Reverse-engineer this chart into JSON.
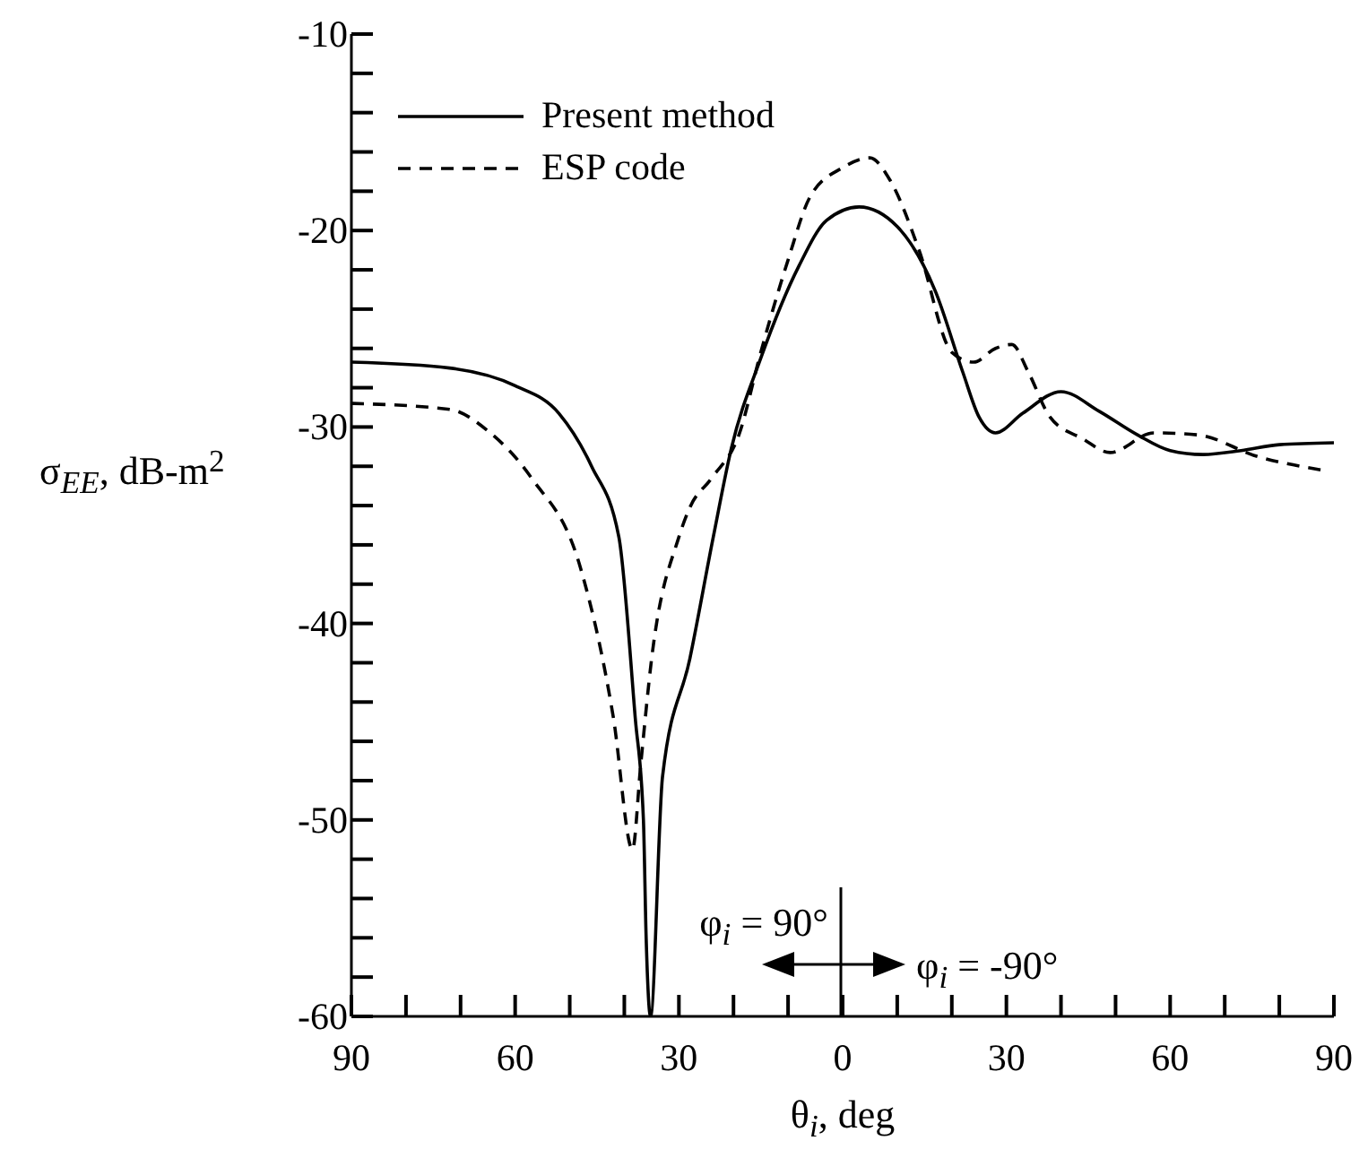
{
  "chart_data": {
    "type": "line",
    "xlabel": "θ$_{i}$, deg",
    "ylabel": "σ$_{EE}$, dB-m$^{2}$",
    "annotations": [
      "φ$_{i}$ = 90°",
      "φ$_{i}$ = -90°"
    ],
    "xlim": [
      -90,
      90
    ],
    "xticks": [
      {
        "value": -90,
        "label": "90"
      },
      {
        "value": -80,
        "label": null
      },
      {
        "value": -70,
        "label": null
      },
      {
        "value": -60,
        "label": "60"
      },
      {
        "value": -50,
        "label": null
      },
      {
        "value": -40,
        "label": null
      },
      {
        "value": -30,
        "label": "30"
      },
      {
        "value": -20,
        "label": null
      },
      {
        "value": -10,
        "label": null
      },
      0,
      {
        "value": 10,
        "label": null
      },
      {
        "value": 20,
        "label": null
      },
      30,
      {
        "value": 40,
        "label": null
      },
      {
        "value": 50,
        "label": null
      },
      60,
      {
        "value": 70,
        "label": null
      },
      {
        "value": 80,
        "label": null
      },
      90
    ],
    "ylim": [
      -60,
      -10
    ],
    "yticks": [
      -60,
      {
        "value": -58,
        "label": null
      },
      {
        "value": -56,
        "label": null
      },
      {
        "value": -54,
        "label": null
      },
      {
        "value": -52,
        "label": null
      },
      -50,
      {
        "value": -48,
        "label": null
      },
      {
        "value": -46,
        "label": null
      },
      {
        "value": -44,
        "label": null
      },
      {
        "value": -42,
        "label": null
      },
      -40,
      {
        "value": -38,
        "label": null
      },
      {
        "value": -36,
        "label": null
      },
      {
        "value": -34,
        "label": null
      },
      {
        "value": -32,
        "label": null
      },
      -30,
      {
        "value": -28,
        "label": null
      },
      {
        "value": -26,
        "label": null
      },
      {
        "value": -24,
        "label": null
      },
      {
        "value": -22,
        "label": null
      },
      -20,
      {
        "value": -18,
        "label": null
      },
      {
        "value": -16,
        "label": null
      },
      {
        "value": -14,
        "label": null
      },
      {
        "value": -12,
        "label": null
      },
      -10
    ],
    "grid": false,
    "legend": "top left",
    "marker": "none",
    "series": [
      {
        "name": "Present method",
        "color": "#000000",
        "line_style": "solid",
        "x": [
          -90,
          -72,
          -60,
          -52,
          -46,
          -41,
          -38,
          -36.5,
          -36,
          -35.2,
          -33,
          -28,
          -23.7,
          -20.4,
          -15,
          -8,
          -3,
          3,
          10,
          17,
          22,
          25,
          28,
          33,
          40,
          47,
          54,
          60,
          66,
          73,
          80,
          90
        ],
        "values": [
          -26.7,
          -27,
          -27.9,
          -29.3,
          -32,
          -35.6,
          -44.8,
          -50,
          -56,
          -60,
          -47.8,
          -41.8,
          -35.6,
          -31.1,
          -26.5,
          -21.8,
          -19.5,
          -18.8,
          -19.8,
          -23.1,
          -27.2,
          -29.5,
          -30.3,
          -29.3,
          -28.2,
          -29.2,
          -30.4,
          -31.2,
          -31.4,
          -31.2,
          -30.9,
          -30.8
        ]
      },
      {
        "name": "ESP code",
        "color": "#000000",
        "line_style": "dashed",
        "x": [
          -90,
          -72,
          -65,
          -57,
          -48,
          -42,
          -38.5,
          -37,
          -35,
          -30,
          -28,
          -24,
          -19,
          -15,
          -10,
          -6,
          0,
          5,
          8.6,
          14,
          20,
          24,
          28,
          31,
          34,
          38,
          44,
          49,
          57,
          65,
          76,
          88
        ],
        "values": [
          -28.8,
          -29.1,
          -30.2,
          -32.6,
          -37.2,
          -44.8,
          -51.5,
          -47.2,
          -41.8,
          -35.6,
          -34.1,
          -32.6,
          -30.4,
          -26.2,
          -21.5,
          -18.3,
          -16.8,
          -16.3,
          -17.4,
          -21,
          -26.2,
          -26.7,
          -26,
          -25.8,
          -27.2,
          -29.5,
          -30.6,
          -31.3,
          -30.3,
          -30.4,
          -31.5,
          -32.2
        ]
      }
    ]
  }
}
